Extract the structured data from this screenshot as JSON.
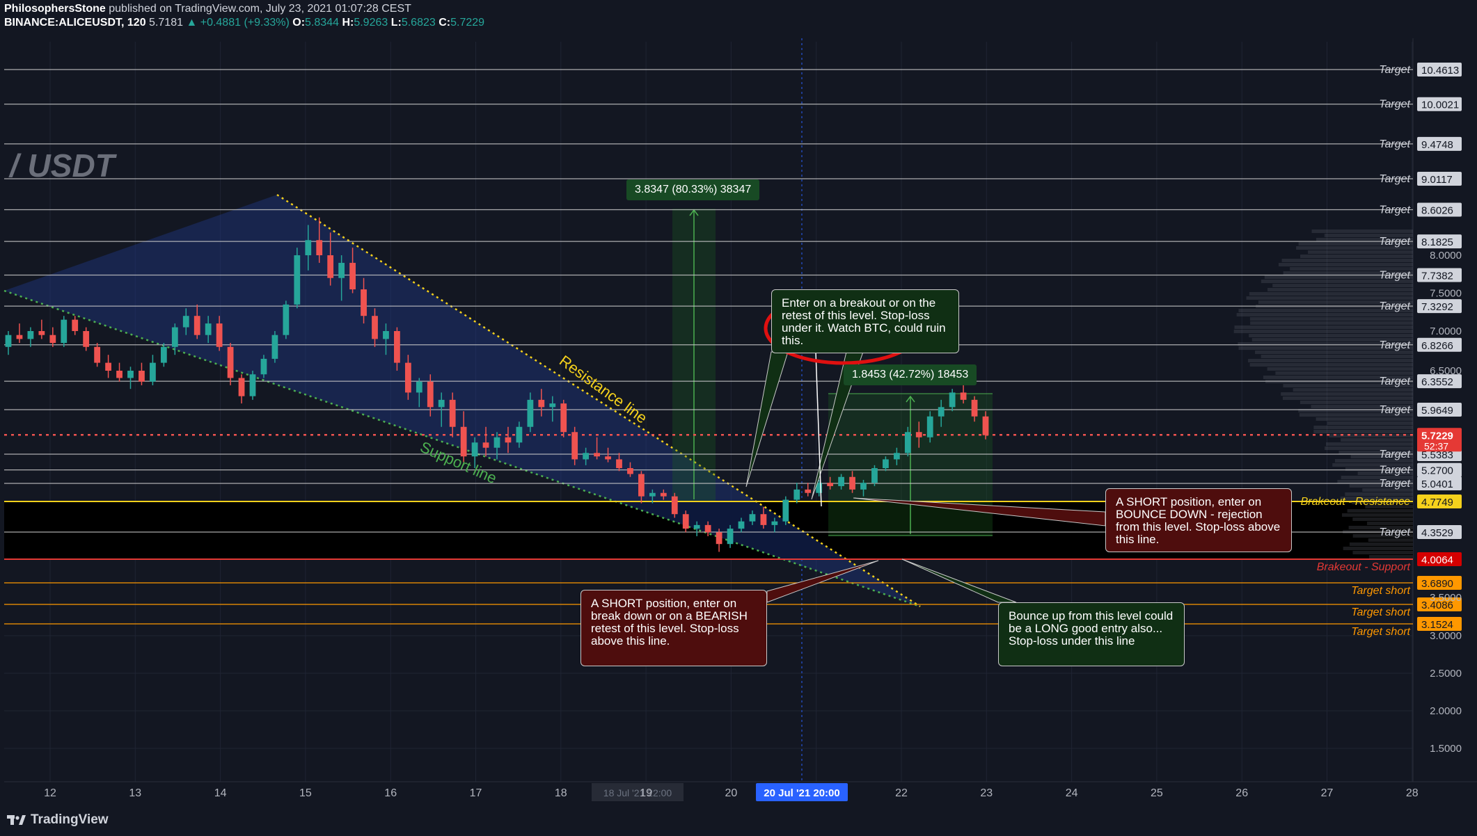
{
  "header": {
    "author": "PhilosophersStone",
    "published": "published on TradingView.com, July 23, 2021 01:07:28 CEST",
    "symbol": "BINANCE:ALICEUSDT, 120",
    "last": "5.7181",
    "change": "▲ +0.4881 (+9.33%)",
    "o_label": "O:",
    "o": "5.8344",
    "h_label": "H:",
    "h": "5.9263",
    "l_label": "L:",
    "l": "5.6823",
    "c_label": "C:",
    "c": "5.7229"
  },
  "watermark": "/ USDT",
  "brand": "TradingView",
  "colors": {
    "bg": "#131722",
    "up": "#26a69a",
    "down": "#ef5350",
    "channel": "#1e3a8a",
    "resistance": "#f5d11c",
    "support": "#4caf50",
    "accent": "#2962ff"
  },
  "chart_data": {
    "type": "candlestick",
    "symbol": "BINANCE:ALICEUSDT",
    "interval": "120",
    "x_ticks": [
      "12",
      "13",
      "14",
      "15",
      "16",
      "17",
      "18",
      "19",
      "20",
      "21",
      "22",
      "23",
      "24",
      "25",
      "26",
      "27",
      "28"
    ],
    "y_ticks": [
      "8.0000",
      "7.5000",
      "7.0000",
      "6.5000",
      "3.5000",
      "3.0000",
      "2.5000",
      "2.0000",
      "1.5000"
    ],
    "current_price": "5.7229",
    "countdown": "52:37",
    "crosshair_date": "20 Jul '21  20:00",
    "crosshair_date_secondary": "18 Jul '21  22:00",
    "targets": [
      {
        "label": "Target",
        "price": "10.4613"
      },
      {
        "label": "Target",
        "price": "10.0021"
      },
      {
        "label": "Target",
        "price": "9.4748"
      },
      {
        "label": "Target",
        "price": "9.0117"
      },
      {
        "label": "Target",
        "price": "8.6026"
      },
      {
        "label": "Target",
        "price": "8.1825"
      },
      {
        "label": "Target",
        "price": "7.7382"
      },
      {
        "label": "Target",
        "price": "7.3292"
      },
      {
        "label": "Target",
        "price": "6.8266"
      },
      {
        "label": "Target",
        "price": "6.3552"
      },
      {
        "label": "Target",
        "price": "5.9649"
      },
      {
        "label": "Target",
        "price": "5.5383"
      },
      {
        "label": "Target",
        "price": "5.2700"
      },
      {
        "label": "Target",
        "price": "5.0401"
      },
      {
        "label": "Target",
        "price": "4.3529"
      }
    ],
    "levels": [
      {
        "label": "Brakeout - Resistance",
        "price": "4.7749"
      },
      {
        "label": "Brakeout - Support",
        "price": "4.0064"
      }
    ],
    "short_targets": [
      {
        "label": "Target short",
        "price": "3.6890"
      },
      {
        "label": "Target short",
        "price": "3.4086"
      },
      {
        "label": "Target short",
        "price": "3.1524"
      }
    ],
    "trendlines": [
      {
        "name": "Resistance line"
      },
      {
        "name": "Support line"
      }
    ],
    "measures": [
      {
        "text": "3.8347 (80.33%) 38347"
      },
      {
        "text": "1.8453 (42.72%) 18453"
      }
    ],
    "candles": [
      {
        "o": 6.8,
        "h": 7.0,
        "l": 6.7,
        "c": 6.95
      },
      {
        "o": 6.95,
        "h": 7.1,
        "l": 6.85,
        "c": 6.9
      },
      {
        "o": 6.9,
        "h": 7.05,
        "l": 6.8,
        "c": 7.0
      },
      {
        "o": 7.0,
        "h": 7.15,
        "l": 6.9,
        "c": 6.95
      },
      {
        "o": 6.95,
        "h": 7.05,
        "l": 6.8,
        "c": 6.85
      },
      {
        "o": 6.85,
        "h": 7.2,
        "l": 6.8,
        "c": 7.15
      },
      {
        "o": 7.15,
        "h": 7.2,
        "l": 6.95,
        "c": 7.0
      },
      {
        "o": 7.0,
        "h": 7.05,
        "l": 6.75,
        "c": 6.8
      },
      {
        "o": 6.8,
        "h": 6.85,
        "l": 6.55,
        "c": 6.6
      },
      {
        "o": 6.6,
        "h": 6.7,
        "l": 6.4,
        "c": 6.5
      },
      {
        "o": 6.5,
        "h": 6.6,
        "l": 6.35,
        "c": 6.4
      },
      {
        "o": 6.4,
        "h": 6.55,
        "l": 6.25,
        "c": 6.5
      },
      {
        "o": 6.5,
        "h": 6.6,
        "l": 6.3,
        "c": 6.35
      },
      {
        "o": 6.35,
        "h": 6.7,
        "l": 6.3,
        "c": 6.6
      },
      {
        "o": 6.6,
        "h": 6.85,
        "l": 6.55,
        "c": 6.8
      },
      {
        "o": 6.8,
        "h": 7.1,
        "l": 6.7,
        "c": 7.05
      },
      {
        "o": 7.05,
        "h": 7.3,
        "l": 6.95,
        "c": 7.2
      },
      {
        "o": 7.2,
        "h": 7.35,
        "l": 6.9,
        "c": 6.95
      },
      {
        "o": 6.95,
        "h": 7.2,
        "l": 6.85,
        "c": 7.1
      },
      {
        "o": 7.1,
        "h": 7.2,
        "l": 6.75,
        "c": 6.8
      },
      {
        "o": 6.8,
        "h": 6.85,
        "l": 6.3,
        "c": 6.4
      },
      {
        "o": 6.4,
        "h": 6.45,
        "l": 6.05,
        "c": 6.15
      },
      {
        "o": 6.15,
        "h": 6.5,
        "l": 6.1,
        "c": 6.45
      },
      {
        "o": 6.45,
        "h": 6.7,
        "l": 6.4,
        "c": 6.65
      },
      {
        "o": 6.65,
        "h": 7.0,
        "l": 6.6,
        "c": 6.95
      },
      {
        "o": 6.95,
        "h": 7.4,
        "l": 6.9,
        "c": 7.35
      },
      {
        "o": 7.35,
        "h": 8.1,
        "l": 7.3,
        "c": 8.0
      },
      {
        "o": 8.0,
        "h": 8.4,
        "l": 7.8,
        "c": 8.2
      },
      {
        "o": 8.2,
        "h": 8.5,
        "l": 7.9,
        "c": 8.0
      },
      {
        "o": 8.0,
        "h": 8.3,
        "l": 7.6,
        "c": 7.7
      },
      {
        "o": 7.7,
        "h": 8.0,
        "l": 7.4,
        "c": 7.9
      },
      {
        "o": 7.9,
        "h": 8.1,
        "l": 7.5,
        "c": 7.55
      },
      {
        "o": 7.55,
        "h": 7.7,
        "l": 7.1,
        "c": 7.2
      },
      {
        "o": 7.2,
        "h": 7.3,
        "l": 6.8,
        "c": 6.9
      },
      {
        "o": 6.9,
        "h": 7.1,
        "l": 6.7,
        "c": 7.0
      },
      {
        "o": 7.0,
        "h": 7.05,
        "l": 6.5,
        "c": 6.6
      },
      {
        "o": 6.6,
        "h": 6.7,
        "l": 6.1,
        "c": 6.2
      },
      {
        "o": 6.2,
        "h": 6.4,
        "l": 6.0,
        "c": 6.35
      },
      {
        "o": 6.35,
        "h": 6.45,
        "l": 5.9,
        "c": 6.0
      },
      {
        "o": 6.0,
        "h": 6.2,
        "l": 5.8,
        "c": 6.1
      },
      {
        "o": 6.1,
        "h": 6.2,
        "l": 5.7,
        "c": 5.8
      },
      {
        "o": 5.8,
        "h": 5.95,
        "l": 5.4,
        "c": 5.5
      },
      {
        "o": 5.5,
        "h": 5.7,
        "l": 5.3,
        "c": 5.65
      },
      {
        "o": 5.65,
        "h": 5.8,
        "l": 5.5,
        "c": 5.6
      },
      {
        "o": 5.6,
        "h": 5.75,
        "l": 5.45,
        "c": 5.7
      },
      {
        "o": 5.7,
        "h": 5.8,
        "l": 5.55,
        "c": 5.65
      },
      {
        "o": 5.65,
        "h": 5.85,
        "l": 5.6,
        "c": 5.8
      },
      {
        "o": 5.8,
        "h": 6.2,
        "l": 5.75,
        "c": 6.1
      },
      {
        "o": 6.1,
        "h": 6.25,
        "l": 5.9,
        "c": 6.0
      },
      {
        "o": 6.0,
        "h": 6.15,
        "l": 5.85,
        "c": 6.05
      },
      {
        "o": 6.05,
        "h": 6.1,
        "l": 5.7,
        "c": 5.75
      },
      {
        "o": 5.75,
        "h": 5.8,
        "l": 5.35,
        "c": 5.45
      },
      {
        "o": 5.45,
        "h": 5.6,
        "l": 5.35,
        "c": 5.55
      },
      {
        "o": 5.55,
        "h": 5.7,
        "l": 5.45,
        "c": 5.5
      },
      {
        "o": 5.5,
        "h": 5.6,
        "l": 5.4,
        "c": 5.45
      },
      {
        "o": 5.45,
        "h": 5.55,
        "l": 5.25,
        "c": 5.3
      },
      {
        "o": 5.3,
        "h": 5.4,
        "l": 5.15,
        "c": 5.2
      },
      {
        "o": 5.2,
        "h": 5.25,
        "l": 4.75,
        "c": 4.85
      },
      {
        "o": 4.85,
        "h": 4.95,
        "l": 4.75,
        "c": 4.9
      },
      {
        "o": 4.9,
        "h": 4.95,
        "l": 4.8,
        "c": 4.85
      },
      {
        "o": 4.85,
        "h": 4.9,
        "l": 4.55,
        "c": 4.6
      },
      {
        "o": 4.6,
        "h": 4.65,
        "l": 4.35,
        "c": 4.4
      },
      {
        "o": 4.4,
        "h": 4.5,
        "l": 4.3,
        "c": 4.45
      },
      {
        "o": 4.45,
        "h": 4.5,
        "l": 4.3,
        "c": 4.35
      },
      {
        "o": 4.35,
        "h": 4.4,
        "l": 4.1,
        "c": 4.2
      },
      {
        "o": 4.2,
        "h": 4.45,
        "l": 4.15,
        "c": 4.4
      },
      {
        "o": 4.4,
        "h": 4.55,
        "l": 4.35,
        "c": 4.5
      },
      {
        "o": 4.5,
        "h": 4.65,
        "l": 4.45,
        "c": 4.6
      },
      {
        "o": 4.6,
        "h": 4.7,
        "l": 4.4,
        "c": 4.45
      },
      {
        "o": 4.45,
        "h": 4.55,
        "l": 4.35,
        "c": 4.5
      },
      {
        "o": 4.5,
        "h": 4.85,
        "l": 4.45,
        "c": 4.8
      },
      {
        "o": 4.8,
        "h": 5.05,
        "l": 4.75,
        "c": 4.95
      },
      {
        "o": 4.95,
        "h": 5.05,
        "l": 4.85,
        "c": 4.9
      },
      {
        "o": 4.9,
        "h": 5.1,
        "l": 4.85,
        "c": 5.05
      },
      {
        "o": 5.05,
        "h": 5.15,
        "l": 4.95,
        "c": 5.0
      },
      {
        "o": 5.0,
        "h": 5.2,
        "l": 4.95,
        "c": 5.15
      },
      {
        "o": 5.15,
        "h": 5.25,
        "l": 4.9,
        "c": 4.95
      },
      {
        "o": 4.95,
        "h": 5.1,
        "l": 4.85,
        "c": 5.05
      },
      {
        "o": 5.05,
        "h": 5.35,
        "l": 5.0,
        "c": 5.3
      },
      {
        "o": 5.3,
        "h": 5.5,
        "l": 5.25,
        "c": 5.45
      },
      {
        "o": 5.45,
        "h": 5.6,
        "l": 5.35,
        "c": 5.55
      },
      {
        "o": 5.55,
        "h": 5.8,
        "l": 5.5,
        "c": 5.75
      },
      {
        "o": 5.75,
        "h": 5.85,
        "l": 5.6,
        "c": 5.7
      },
      {
        "o": 5.7,
        "h": 5.95,
        "l": 5.65,
        "c": 5.9
      },
      {
        "o": 5.9,
        "h": 6.1,
        "l": 5.8,
        "c": 6.0
      },
      {
        "o": 6.0,
        "h": 6.25,
        "l": 5.95,
        "c": 6.2
      },
      {
        "o": 6.2,
        "h": 6.3,
        "l": 6.05,
        "c": 6.1
      },
      {
        "o": 6.1,
        "h": 6.15,
        "l": 5.85,
        "c": 5.9
      },
      {
        "o": 5.9,
        "h": 5.95,
        "l": 5.68,
        "c": 5.72
      }
    ]
  },
  "annotations": {
    "note_breakout": "Enter on a breakout or on the retest of this level. Stop-loss under it. Watch BTC, could ruin this.",
    "note_short_bounce": "A SHORT position, enter on BOUNCE DOWN - rejection from this level. Stop-loss above this line.",
    "note_short_break": "A SHORT position, enter on break down or on a BEARISH retest of this level. Stop-loss above this line.",
    "note_long_bounce": "Bounce up from this level could be a LONG good entry also... Stop-loss under this line"
  }
}
